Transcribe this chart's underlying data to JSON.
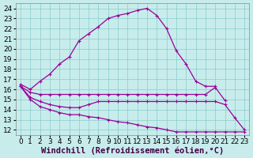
{
  "background_color": "#c8ecec",
  "line_color": "#990099",
  "grid_color": "#88cccc",
  "xlabel": "Windchill (Refroidissement éolien,°C)",
  "xlabel_fontsize": 7.5,
  "tick_fontsize": 6.5,
  "xlim": [
    -0.5,
    23.5
  ],
  "ylim": [
    11.5,
    24.5
  ],
  "yticks": [
    12,
    13,
    14,
    15,
    16,
    17,
    18,
    19,
    20,
    21,
    22,
    23,
    24
  ],
  "xticks": [
    0,
    1,
    2,
    3,
    4,
    5,
    6,
    7,
    8,
    9,
    10,
    11,
    12,
    13,
    14,
    15,
    16,
    17,
    18,
    19,
    20,
    21,
    22,
    23
  ],
  "curves": [
    {
      "x": [
        0,
        1,
        2,
        3,
        4,
        5,
        6,
        7,
        8,
        9,
        10,
        11,
        12,
        13,
        14,
        15,
        16,
        17,
        18,
        19,
        20
      ],
      "y": [
        16.5,
        16.0,
        16.8,
        17.5,
        18.5,
        19.2,
        20.8,
        21.5,
        22.2,
        23.0,
        23.3,
        23.5,
        23.8,
        24.0,
        23.3,
        22.0,
        19.8,
        18.5,
        16.8,
        16.3,
        16.3
      ]
    },
    {
      "x": [
        0,
        1,
        2,
        3,
        4,
        5,
        6,
        7,
        8,
        9,
        10,
        11,
        12,
        13,
        14,
        15,
        16,
        17,
        18,
        19,
        20,
        21
      ],
      "y": [
        16.3,
        15.7,
        15.5,
        15.5,
        15.5,
        15.5,
        15.5,
        15.5,
        15.5,
        15.5,
        15.5,
        15.5,
        15.5,
        15.5,
        15.5,
        15.5,
        15.5,
        15.5,
        15.5,
        15.5,
        16.2,
        14.9
      ]
    },
    {
      "x": [
        0,
        1,
        2,
        3,
        4,
        5,
        6,
        7,
        8,
        9,
        10,
        11,
        12,
        13,
        14,
        15,
        16,
        17,
        18,
        19,
        20,
        21,
        22,
        23
      ],
      "y": [
        16.3,
        15.2,
        14.8,
        14.5,
        14.3,
        14.2,
        14.2,
        14.5,
        14.8,
        14.8,
        14.8,
        14.8,
        14.8,
        14.8,
        14.8,
        14.8,
        14.8,
        14.8,
        14.8,
        14.8,
        14.8,
        14.5,
        13.2,
        12.0
      ]
    },
    {
      "x": [
        0,
        1,
        2,
        3,
        4,
        5,
        6,
        7,
        8,
        9,
        10,
        11,
        12,
        13,
        14,
        15,
        16,
        17,
        18,
        19,
        20,
        21,
        22,
        23
      ],
      "y": [
        16.3,
        15.0,
        14.3,
        14.0,
        13.7,
        13.5,
        13.5,
        13.3,
        13.2,
        13.0,
        12.8,
        12.7,
        12.5,
        12.3,
        12.2,
        12.0,
        11.8,
        11.8,
        11.8,
        11.8,
        11.8,
        11.8,
        11.8,
        11.8
      ]
    }
  ]
}
